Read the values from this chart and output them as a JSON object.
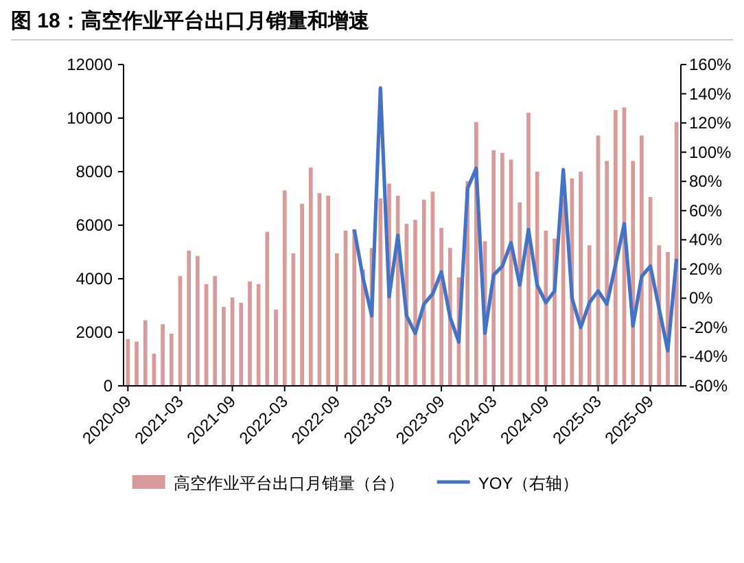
{
  "chart_data": {
    "type": "bar",
    "title": "图 18：高空作业平台出口月销量和增速",
    "categories": [
      "2020-09",
      null,
      null,
      null,
      null,
      null,
      "2021-03",
      null,
      null,
      null,
      null,
      null,
      "2021-09",
      null,
      null,
      null,
      null,
      null,
      "2022-03",
      null,
      null,
      null,
      null,
      null,
      "2022-09",
      null,
      null,
      null,
      null,
      null,
      "2023-03",
      null,
      null,
      null,
      null,
      null,
      "2023-09",
      null,
      null,
      null,
      null,
      null,
      "2024-03",
      null,
      null,
      null,
      null,
      null,
      "2024-09",
      null,
      null,
      null,
      null,
      null,
      "2025-03",
      null,
      null,
      null,
      null,
      null,
      "2025-09",
      null,
      null,
      null
    ],
    "series": [
      {
        "name": "高空作业平台出口月销量（台）",
        "color": "#d99a9a",
        "values": [
          1750,
          1650,
          2450,
          1200,
          2300,
          1950,
          4100,
          5050,
          4850,
          3800,
          4100,
          2950,
          3300,
          3100,
          3900,
          3800,
          5750,
          2850,
          7300,
          4950,
          6800,
          8150,
          7200,
          7100,
          4950,
          5800,
          5850,
          4350,
          5150,
          7000,
          7550,
          7100,
          6050,
          6200,
          6950,
          7250,
          5900,
          5150,
          4050,
          7650,
          9850,
          5400,
          8800,
          8700,
          8450,
          6850,
          10200,
          8000,
          5800,
          5500,
          7000,
          7750,
          8000,
          5250,
          9350,
          8400,
          10300,
          10400,
          8400,
          9350,
          7050,
          5250,
          5000,
          9850
        ]
      },
      {
        "name": "YOY（右轴）",
        "type": "line",
        "axis": "y2",
        "color": "#4472c4",
        "values": [
          null,
          null,
          null,
          null,
          null,
          null,
          null,
          null,
          null,
          null,
          null,
          null,
          null,
          null,
          null,
          null,
          null,
          null,
          null,
          null,
          null,
          null,
          null,
          null,
          null,
          null,
          47,
          14,
          -12,
          144,
          1,
          43,
          -12,
          -24,
          -4,
          3,
          18,
          -13,
          -30,
          75,
          89,
          -24,
          16,
          22,
          38,
          9,
          47,
          9,
          -3,
          5,
          88,
          0,
          -20,
          -3,
          5,
          -4,
          23,
          51,
          -19,
          15,
          22,
          -7,
          -36,
          27
        ]
      }
    ],
    "ylim": [
      0,
      12000
    ],
    "yticks": [
      0,
      2000,
      4000,
      6000,
      8000,
      10000,
      12000
    ],
    "y2lim": [
      -60,
      160
    ],
    "y2ticks": [
      {
        "value": -60,
        "label": "-60%"
      },
      {
        "value": -40,
        "label": "-40%"
      },
      {
        "value": -20,
        "label": "-20%"
      },
      {
        "value": 0,
        "label": "0%"
      },
      {
        "value": 20,
        "label": "20%"
      },
      {
        "value": 40,
        "label": "40%"
      },
      {
        "value": 60,
        "label": "60%"
      },
      {
        "value": 80,
        "label": "80%"
      },
      {
        "value": 100,
        "label": "100%"
      },
      {
        "value": 120,
        "label": "120%"
      },
      {
        "value": 140,
        "label": "140%"
      },
      {
        "value": 160,
        "label": "160%"
      }
    ],
    "legend": "bottom",
    "grid": false,
    "marker": "none"
  }
}
